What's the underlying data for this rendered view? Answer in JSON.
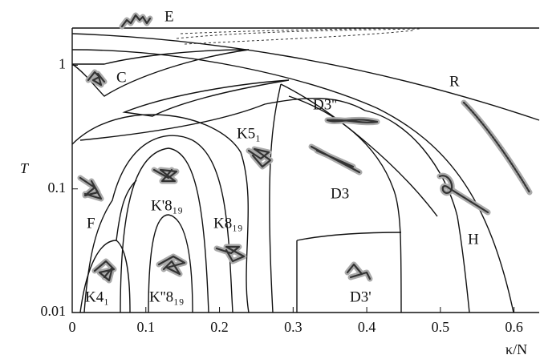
{
  "chart_data": {
    "type": "phase-diagram",
    "x_label": "κ/N",
    "y_label": "T",
    "xlim": [
      0,
      0.632
    ],
    "xticks": [
      0,
      0.1,
      0.2,
      0.3,
      0.4,
      0.5,
      0.6
    ],
    "ylim": [
      0.01,
      2
    ],
    "yticks": [
      0.01,
      0.1,
      1
    ],
    "log_y": true,
    "annotations": [
      "E",
      "C",
      "R",
      "D3''",
      "K5₁",
      "D3",
      "F",
      "K'8₁₉",
      "K8₁₉",
      "H",
      "K4₁",
      "K''8₁₉",
      "D3'"
    ]
  }
}
